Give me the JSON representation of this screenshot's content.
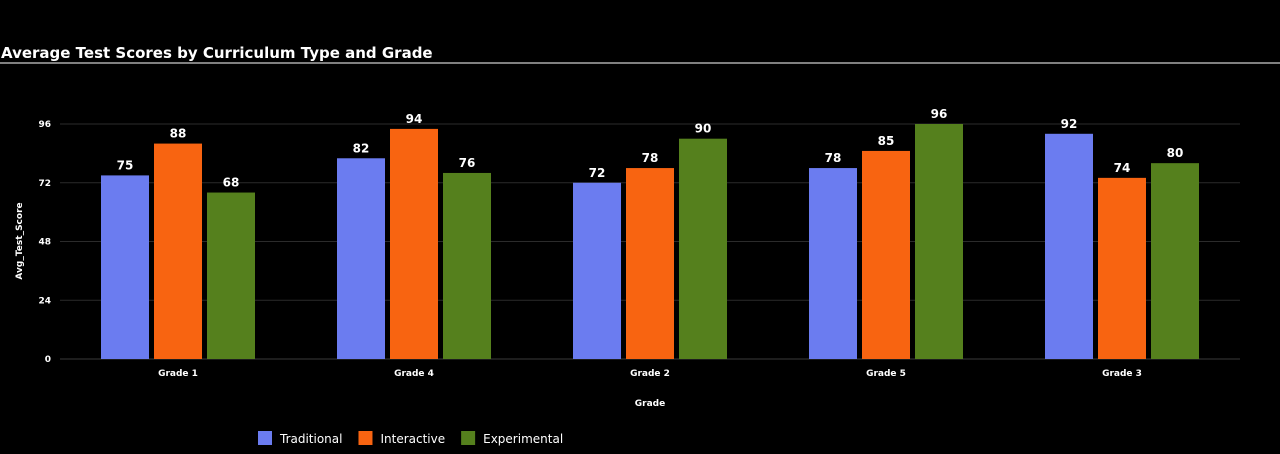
{
  "chart_data": {
    "type": "bar",
    "title": "Average Test Scores by Curriculum Type and Grade",
    "xlabel": "Grade",
    "ylabel": "Avg_Test_Score",
    "categories": [
      "Grade 1",
      "Grade 4",
      "Grade 2",
      "Grade 5",
      "Grade 3"
    ],
    "yticks": [
      0,
      24,
      48,
      72,
      96
    ],
    "ylim": [
      0,
      100
    ],
    "grid": true,
    "legend_position": "bottom-left",
    "series": [
      {
        "name": "Traditional",
        "color": "#6B7CF0",
        "values": [
          75,
          82,
          72,
          78,
          92
        ]
      },
      {
        "name": "Interactive",
        "color": "#F86411",
        "values": [
          88,
          94,
          78,
          85,
          74
        ]
      },
      {
        "name": "Experimental",
        "color": "#55801D",
        "values": [
          68,
          76,
          90,
          96,
          80
        ]
      }
    ]
  }
}
